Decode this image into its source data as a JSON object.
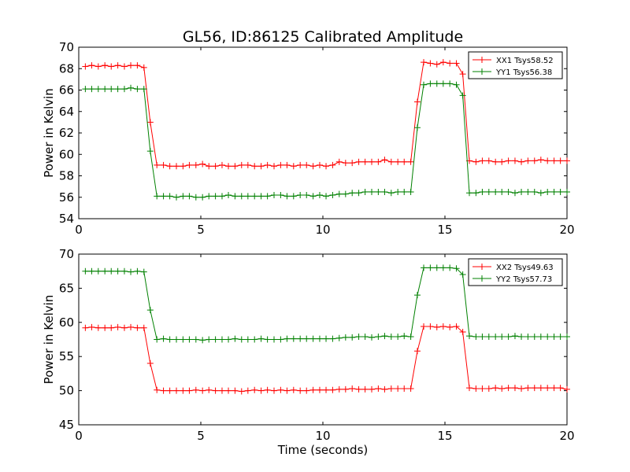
{
  "figure": {
    "title": "GL56, ID:86125 Calibrated Amplitude"
  },
  "chart_data": [
    {
      "type": "line",
      "xlabel": "",
      "ylabel": "Power in Kelvin",
      "xlim": [
        0,
        20
      ],
      "ylim": [
        54,
        70
      ],
      "xticks": [
        0,
        5,
        10,
        15,
        20
      ],
      "yticks": [
        54,
        56,
        58,
        60,
        62,
        64,
        66,
        68,
        70
      ],
      "legend_position": "top-right",
      "x": [
        0.27,
        0.53,
        0.8,
        1.07,
        1.33,
        1.6,
        1.87,
        2.13,
        2.4,
        2.67,
        2.93,
        3.2,
        3.47,
        3.73,
        4.0,
        4.27,
        4.53,
        4.8,
        5.07,
        5.33,
        5.6,
        5.87,
        6.13,
        6.4,
        6.67,
        6.93,
        7.2,
        7.47,
        7.73,
        8.0,
        8.27,
        8.53,
        8.8,
        9.07,
        9.33,
        9.6,
        9.87,
        10.13,
        10.4,
        10.67,
        10.93,
        11.2,
        11.47,
        11.73,
        12.0,
        12.27,
        12.53,
        12.8,
        13.07,
        13.33,
        13.6,
        13.87,
        14.13,
        14.4,
        14.67,
        14.93,
        15.2,
        15.47,
        15.73,
        16.0,
        16.27,
        16.53,
        16.8,
        17.07,
        17.33,
        17.6,
        17.87,
        18.13,
        18.4,
        18.67,
        18.93,
        19.2,
        19.47,
        19.73,
        20.0
      ],
      "series": [
        {
          "name": "XX1 Tsys58.52",
          "color": "#ff0000",
          "values": [
            68.2,
            68.3,
            68.2,
            68.3,
            68.2,
            68.3,
            68.2,
            68.3,
            68.3,
            68.1,
            63.0,
            59.0,
            59.0,
            58.9,
            58.9,
            58.9,
            59.0,
            59.0,
            59.1,
            58.9,
            58.9,
            59.0,
            58.9,
            58.9,
            59.0,
            59.0,
            58.9,
            58.9,
            59.0,
            58.9,
            59.0,
            59.0,
            58.9,
            59.0,
            59.0,
            58.9,
            59.0,
            58.9,
            59.0,
            59.3,
            59.2,
            59.2,
            59.3,
            59.3,
            59.3,
            59.3,
            59.5,
            59.3,
            59.3,
            59.3,
            59.3,
            64.9,
            68.6,
            68.5,
            68.4,
            68.6,
            68.5,
            68.5,
            67.5,
            59.4,
            59.3,
            59.4,
            59.4,
            59.3,
            59.3,
            59.4,
            59.4,
            59.3,
            59.4,
            59.4,
            59.5,
            59.4,
            59.4,
            59.4,
            59.4
          ]
        },
        {
          "name": "YY1 Tsys56.38",
          "color": "#008000",
          "values": [
            66.1,
            66.1,
            66.1,
            66.1,
            66.1,
            66.1,
            66.1,
            66.2,
            66.1,
            66.1,
            60.3,
            56.1,
            56.1,
            56.1,
            56.0,
            56.1,
            56.1,
            56.0,
            56.0,
            56.1,
            56.1,
            56.1,
            56.2,
            56.1,
            56.1,
            56.1,
            56.1,
            56.1,
            56.1,
            56.2,
            56.2,
            56.1,
            56.1,
            56.2,
            56.2,
            56.1,
            56.2,
            56.1,
            56.2,
            56.3,
            56.3,
            56.4,
            56.4,
            56.5,
            56.5,
            56.5,
            56.5,
            56.4,
            56.5,
            56.5,
            56.5,
            62.5,
            66.5,
            66.6,
            66.6,
            66.6,
            66.6,
            66.5,
            65.5,
            56.4,
            56.4,
            56.5,
            56.5,
            56.5,
            56.5,
            56.5,
            56.4,
            56.5,
            56.5,
            56.5,
            56.4,
            56.5,
            56.5,
            56.5,
            56.5
          ]
        }
      ]
    },
    {
      "type": "line",
      "xlabel": "Time (seconds)",
      "ylabel": "Power in Kelvin",
      "xlim": [
        0,
        20
      ],
      "ylim": [
        45,
        70
      ],
      "xticks": [
        0,
        5,
        10,
        15,
        20
      ],
      "yticks": [
        45,
        50,
        55,
        60,
        65,
        70
      ],
      "legend_position": "top-right",
      "x": [
        0.27,
        0.53,
        0.8,
        1.07,
        1.33,
        1.6,
        1.87,
        2.13,
        2.4,
        2.67,
        2.93,
        3.2,
        3.47,
        3.73,
        4.0,
        4.27,
        4.53,
        4.8,
        5.07,
        5.33,
        5.6,
        5.87,
        6.13,
        6.4,
        6.67,
        6.93,
        7.2,
        7.47,
        7.73,
        8.0,
        8.27,
        8.53,
        8.8,
        9.07,
        9.33,
        9.6,
        9.87,
        10.13,
        10.4,
        10.67,
        10.93,
        11.2,
        11.47,
        11.73,
        12.0,
        12.27,
        12.53,
        12.8,
        13.07,
        13.33,
        13.6,
        13.87,
        14.13,
        14.4,
        14.67,
        14.93,
        15.2,
        15.47,
        15.73,
        16.0,
        16.27,
        16.53,
        16.8,
        17.07,
        17.33,
        17.6,
        17.87,
        18.13,
        18.4,
        18.67,
        18.93,
        19.2,
        19.47,
        19.73,
        20.0
      ],
      "series": [
        {
          "name": "XX2 Tsys49.63",
          "color": "#ff0000",
          "values": [
            59.2,
            59.3,
            59.2,
            59.2,
            59.2,
            59.3,
            59.2,
            59.3,
            59.2,
            59.2,
            54.0,
            50.1,
            50.0,
            50.0,
            50.0,
            50.0,
            50.0,
            50.1,
            50.0,
            50.1,
            50.0,
            50.0,
            50.0,
            50.0,
            49.9,
            50.0,
            50.1,
            50.0,
            50.1,
            50.0,
            50.1,
            50.0,
            50.1,
            50.0,
            50.0,
            50.1,
            50.1,
            50.1,
            50.1,
            50.2,
            50.2,
            50.3,
            50.2,
            50.2,
            50.2,
            50.3,
            50.2,
            50.3,
            50.3,
            50.3,
            50.3,
            55.8,
            59.4,
            59.4,
            59.3,
            59.4,
            59.3,
            59.4,
            58.6,
            50.4,
            50.3,
            50.3,
            50.3,
            50.4,
            50.3,
            50.4,
            50.4,
            50.3,
            50.4,
            50.4,
            50.4,
            50.4,
            50.4,
            50.4,
            50.2
          ]
        },
        {
          "name": "YY2 Tsys57.73",
          "color": "#008000",
          "values": [
            67.5,
            67.5,
            67.5,
            67.5,
            67.5,
            67.5,
            67.5,
            67.4,
            67.5,
            67.4,
            61.8,
            57.5,
            57.6,
            57.5,
            57.5,
            57.5,
            57.5,
            57.5,
            57.4,
            57.5,
            57.5,
            57.5,
            57.5,
            57.6,
            57.5,
            57.5,
            57.5,
            57.6,
            57.5,
            57.5,
            57.5,
            57.6,
            57.6,
            57.6,
            57.6,
            57.6,
            57.6,
            57.6,
            57.6,
            57.7,
            57.8,
            57.8,
            57.9,
            57.9,
            57.8,
            57.9,
            58.0,
            57.9,
            57.9,
            58.0,
            57.9,
            64.0,
            68.0,
            68.0,
            68.0,
            68.0,
            68.0,
            67.9,
            67.0,
            58.0,
            57.9,
            57.9,
            57.9,
            57.9,
            57.9,
            57.9,
            58.0,
            57.9,
            57.9,
            57.9,
            57.9,
            57.9,
            57.9,
            57.9,
            57.9
          ]
        }
      ]
    }
  ]
}
